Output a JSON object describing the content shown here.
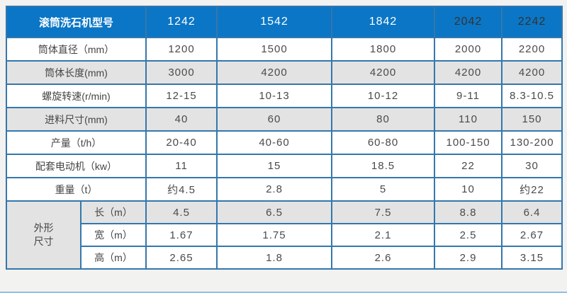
{
  "table": {
    "header": {
      "label": "滚筒洗石机型号",
      "models": [
        {
          "label": "1242",
          "text_color": "#ffffff"
        },
        {
          "label": "1542",
          "text_color": "#ffffff"
        },
        {
          "label": "1842",
          "text_color": "#ffffff"
        },
        {
          "label": "2042",
          "text_color": "#333333"
        },
        {
          "label": "2242",
          "text_color": "#333333"
        }
      ]
    },
    "rows": [
      {
        "label": "筒体直径（mm）",
        "values": [
          "1200",
          "1500",
          "1800",
          "2000",
          "2200"
        ],
        "shaded": false
      },
      {
        "label": "筒体长度(mm)",
        "values": [
          "3000",
          "4200",
          "4200",
          "4200",
          "4200"
        ],
        "shaded": true
      },
      {
        "label": "螺旋转速(r/min)",
        "values": [
          "12-15",
          "10-13",
          "10-12",
          "9-11",
          "8.3-10.5"
        ],
        "shaded": false
      },
      {
        "label": "进料尺寸(mm)",
        "values": [
          "40",
          "60",
          "80",
          "110",
          "150"
        ],
        "shaded": true
      },
      {
        "label": "产量（t/h）",
        "values": [
          "20-40",
          "40-60",
          "60-80",
          "100-150",
          "130-200"
        ],
        "shaded": false
      },
      {
        "label": "配套电动机（kw）",
        "values": [
          "11",
          "15",
          "18.5",
          "22",
          "30"
        ],
        "shaded": false
      },
      {
        "label": "重量（t）",
        "values": [
          "约4.5",
          "2.8",
          "5",
          "10",
          "约22"
        ],
        "shaded": false
      }
    ],
    "dimension_section": {
      "label": "外形\n尺寸",
      "rows": [
        {
          "label": "长（m）",
          "values": [
            "4.5",
            "6.5",
            "7.5",
            "8.8",
            "6.4"
          ],
          "shaded": true
        },
        {
          "label": "宽（m）",
          "values": [
            "1.67",
            "1.75",
            "2.1",
            "2.5",
            "2.67"
          ],
          "shaded": false
        },
        {
          "label": "高（m）",
          "values": [
            "2.65",
            "1.8",
            "2.6",
            "2.9",
            "3.15"
          ],
          "shaded": false
        }
      ]
    },
    "colors": {
      "header_bg": "#0b76c5",
      "grid_border": "#3477ac",
      "shaded_row_bg": "#e3e3e3",
      "page_bg": "#f2f2f0",
      "body_text": "#4a4a4a"
    }
  },
  "chart_data": {
    "type": "table",
    "title": "滚筒洗石机型号",
    "columns": [
      "滚筒洗石机型号",
      "1242",
      "1542",
      "1842",
      "2042",
      "2242"
    ],
    "rows": [
      [
        "筒体直径（mm）",
        "1200",
        "1500",
        "1800",
        "2000",
        "2200"
      ],
      [
        "筒体长度(mm)",
        "3000",
        "4200",
        "4200",
        "4200",
        "4200"
      ],
      [
        "螺旋转速(r/min)",
        "12-15",
        "10-13",
        "10-12",
        "9-11",
        "8.3-10.5"
      ],
      [
        "进料尺寸(mm)",
        "40",
        "60",
        "80",
        "110",
        "150"
      ],
      [
        "产量（t/h）",
        "20-40",
        "40-60",
        "60-80",
        "100-150",
        "130-200"
      ],
      [
        "配套电动机（kw）",
        "11",
        "15",
        "18.5",
        "22",
        "30"
      ],
      [
        "重量（t）",
        "约4.5",
        "2.8",
        "5",
        "10",
        "约22"
      ],
      [
        "外形尺寸 长（m）",
        "4.5",
        "6.5",
        "7.5",
        "8.8",
        "6.4"
      ],
      [
        "外形尺寸 宽（m）",
        "1.67",
        "1.75",
        "2.1",
        "2.5",
        "2.67"
      ],
      [
        "外形尺寸 高（m）",
        "2.65",
        "1.8",
        "2.6",
        "2.9",
        "3.15"
      ]
    ]
  }
}
